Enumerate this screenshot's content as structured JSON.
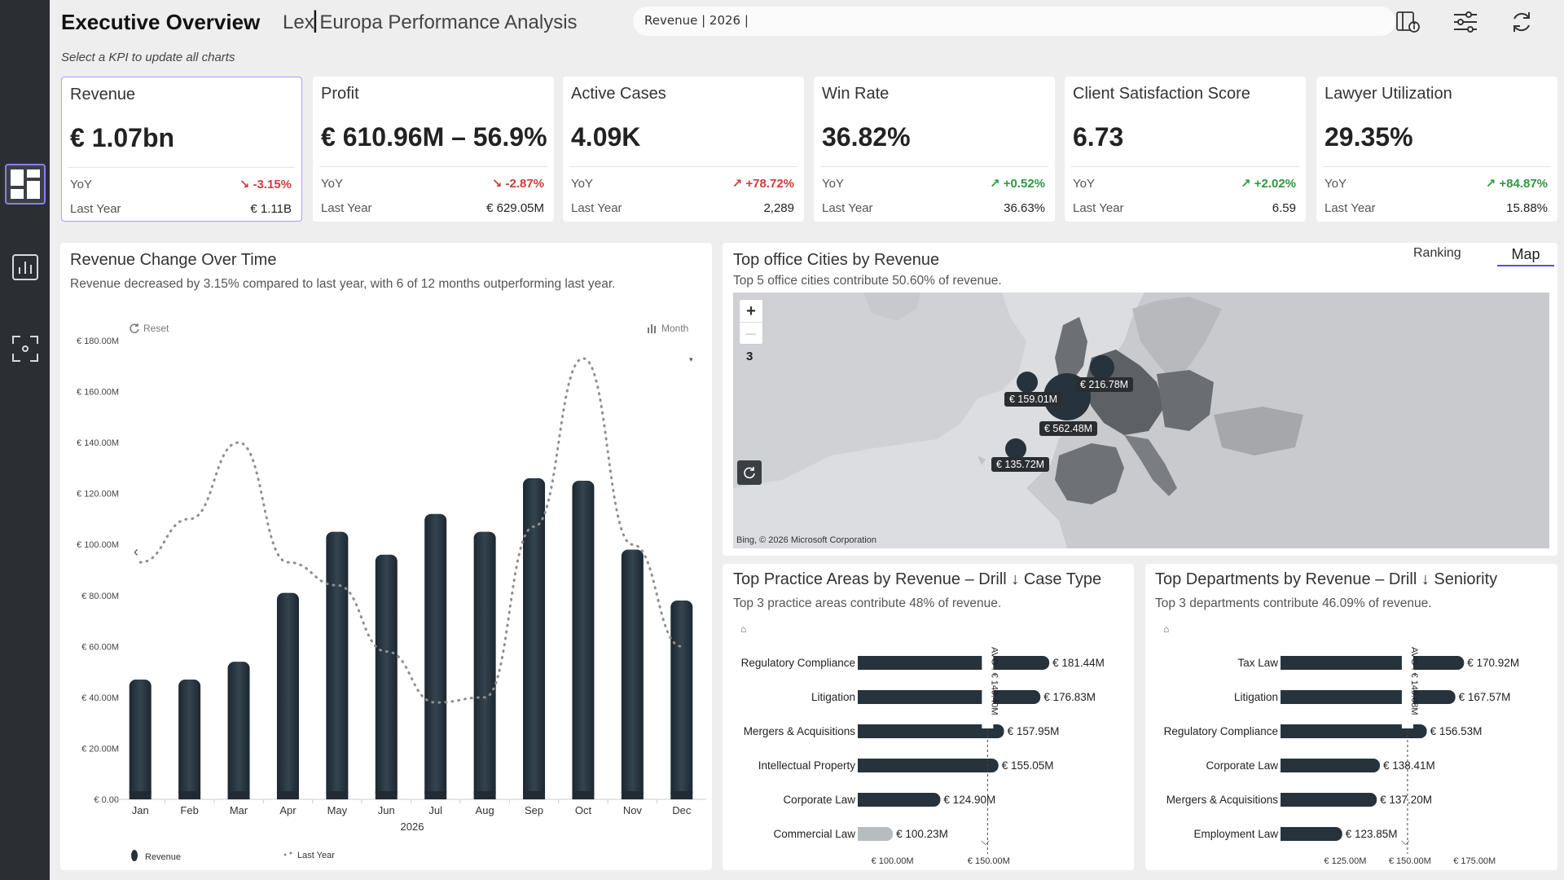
{
  "header": {
    "title": "Executive Overview",
    "separator": "|",
    "subtitle": "Lex Europa Performance Analysis",
    "search_value": "Revenue | 2026 |",
    "hint": "Select a KPI to update all charts"
  },
  "kpis": [
    {
      "title": "Revenue",
      "value": "€ 1.07bn",
      "yoy_label": "YoY",
      "yoy": "↘ -3.15%",
      "ly_label": "Last Year",
      "ly": "€ 1.11B",
      "trend": "neg"
    },
    {
      "title": "Profit",
      "value": "€ 610.96M – 56.9%",
      "yoy_label": "YoY",
      "yoy": "↘ -2.87%",
      "ly_label": "Last Year",
      "ly": "€ 629.05M",
      "trend": "neg"
    },
    {
      "title": "Active Cases",
      "value": "4.09K",
      "yoy_label": "YoY",
      "yoy": "↗ +78.72%",
      "ly_label": "Last Year",
      "ly": "2,289",
      "trend": "neg"
    },
    {
      "title": "Win Rate",
      "value": "36.82%",
      "yoy_label": "YoY",
      "yoy": "↗ +0.52%",
      "ly_label": "Last Year",
      "ly": "36.63%",
      "trend": "pos"
    },
    {
      "title": "Client Satisfaction Score",
      "value": "6.73",
      "yoy_label": "YoY",
      "yoy": "↗ +2.02%",
      "ly_label": "Last Year",
      "ly": "6.59",
      "trend": "pos"
    },
    {
      "title": "Lawyer Utilization",
      "value": "29.35%",
      "yoy_label": "YoY",
      "yoy": "↗ +84.87%",
      "ly_label": "Last Year",
      "ly": "15.88%",
      "trend": "pos"
    }
  ],
  "revenue_card": {
    "title": "Revenue Change Over Time",
    "subtitle": "Revenue decreased by 3.15% compared to last year, with 6 of 12 months outperforming last year.",
    "reset_label": "Reset",
    "granularity_label": "Month",
    "year_label": "2026"
  },
  "map_card": {
    "title": "Top office Cities by Revenue",
    "subtitle": "Top 5 office cities contribute 50.60% of revenue.",
    "tab_ranking": "Ranking",
    "tab_map": "Map",
    "zoom_in": "+",
    "zoom_out": "—",
    "zoom_level": "3",
    "attribution": "Bing, © 2026 Microsoft Corporation",
    "bubbles": [
      "€ 159.01M",
      "€ 216.78M",
      "€ 562.48M",
      "€ 135.72M"
    ]
  },
  "practice_card": {
    "title": "Top Practice Areas by Revenue – Drill ↓ Case Type",
    "subtitle": "Top 3 practice areas contribute 48% of revenue.",
    "avg_label": "AVG : € 149.40M"
  },
  "dept_card": {
    "title": "Top Departments by Revenue – Drill ↓ Seniority",
    "subtitle": "Top 3 departments contribute 46.09% of revenue.",
    "avg_label": "AVG : € 149.08M"
  },
  "chart_data": [
    {
      "type": "bar",
      "title": "Revenue Change Over Time",
      "xlabel": "2026",
      "categories": [
        "Jan",
        "Feb",
        "Mar",
        "Apr",
        "May",
        "Jun",
        "Jul",
        "Aug",
        "Sep",
        "Oct",
        "Nov",
        "Dec"
      ],
      "series": [
        {
          "name": "Revenue",
          "type": "bar",
          "values": [
            47,
            47,
            54,
            81,
            105,
            96,
            112,
            105,
            126,
            125,
            98,
            78
          ]
        },
        {
          "name": "Last Year",
          "type": "line",
          "values": [
            93,
            110,
            140,
            93,
            84,
            58,
            38,
            40,
            107,
            173,
            100,
            60
          ]
        }
      ],
      "yticks": [
        "€ 0.00",
        "€ 20.00M",
        "€ 40.00M",
        "€ 60.00M",
        "€ 80.00M",
        "€ 100.00M",
        "€ 120.00M",
        "€ 140.00M",
        "€ 160.00M",
        "€ 180.00M"
      ],
      "ylim": [
        0,
        180
      ],
      "units": "€ M",
      "legend": "bottom-left",
      "colors": {
        "bar": "#26333d",
        "line": "#9a9a9a"
      }
    },
    {
      "type": "bar",
      "orientation": "horizontal",
      "title": "Top Practice Areas by Revenue – Drill ↓ Case Type",
      "categories": [
        "Regulatory Compliance",
        "Litigation",
        "Mergers & Acquisitions",
        "Intellectual Property",
        "Corporate Law",
        "Commercial Law"
      ],
      "values": [
        181.44,
        176.83,
        157.95,
        155.05,
        124.9,
        100.23
      ],
      "value_labels": [
        "€ 181.44M",
        "€ 176.83M",
        "€ 157.95M",
        "€ 155.05M",
        "€ 124.90M",
        "€ 100.23M"
      ],
      "average": 149.4,
      "xticks": [
        "€ 100.00M",
        "€ 150.00M"
      ],
      "units": "€ M"
    },
    {
      "type": "bar",
      "orientation": "horizontal",
      "title": "Top Departments by Revenue – Drill ↓ Seniority",
      "categories": [
        "Tax Law",
        "Litigation",
        "Regulatory Compliance",
        "Corporate Law",
        "Mergers & Acquisitions",
        "Employment Law"
      ],
      "values": [
        170.92,
        167.57,
        156.53,
        138.41,
        137.2,
        123.85
      ],
      "value_labels": [
        "€ 170.92M",
        "€ 167.57M",
        "€ 156.53M",
        "€ 138.41M",
        "€ 137.20M",
        "€ 123.85M"
      ],
      "average": 149.08,
      "xticks": [
        "€ 125.00M",
        "€ 150.00M",
        "€ 175.00M"
      ],
      "units": "€ M"
    }
  ]
}
